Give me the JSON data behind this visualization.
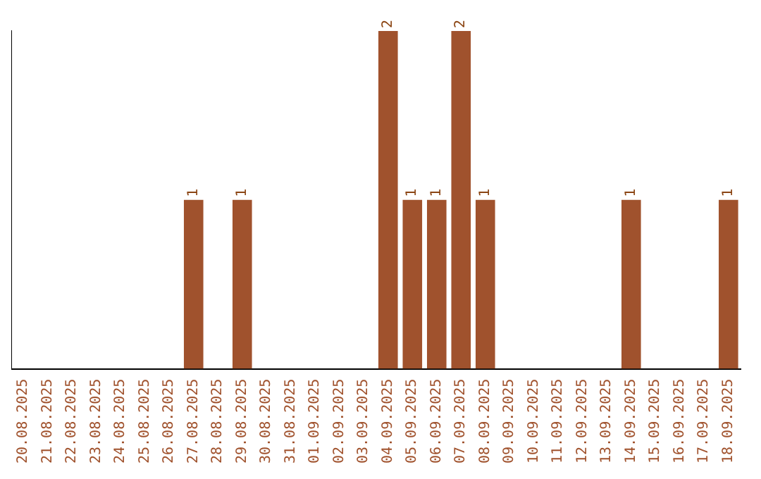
{
  "chart_data": {
    "type": "bar",
    "categories": [
      "20.08.2025",
      "21.08.2025",
      "22.08.2025",
      "23.08.2025",
      "24.08.2025",
      "25.08.2025",
      "26.08.2025",
      "27.08.2025",
      "28.08.2025",
      "29.08.2025",
      "30.08.2025",
      "31.08.2025",
      "01.09.2025",
      "02.09.2025",
      "03.09.2025",
      "04.09.2025",
      "05.09.2025",
      "06.09.2025",
      "07.09.2025",
      "08.09.2025",
      "09.09.2025",
      "10.09.2025",
      "11.09.2025",
      "12.09.2025",
      "13.09.2025",
      "14.09.2025",
      "15.09.2025",
      "16.09.2025",
      "17.09.2025",
      "18.09.2025"
    ],
    "values": [
      0,
      0,
      0,
      0,
      0,
      0,
      0,
      1,
      0,
      1,
      0,
      0,
      0,
      0,
      0,
      2,
      1,
      1,
      2,
      1,
      0,
      0,
      0,
      0,
      0,
      1,
      0,
      0,
      0,
      1
    ],
    "value_labels": [
      null,
      null,
      null,
      null,
      null,
      null,
      null,
      "1",
      null,
      "1",
      null,
      null,
      null,
      null,
      null,
      "2",
      "1",
      "1",
      "2",
      "1",
      null,
      null,
      null,
      null,
      null,
      "1",
      null,
      null,
      null,
      "1"
    ],
    "color": "#a0522d",
    "tick_labels": "x",
    "grid": false,
    "legend": false
  }
}
